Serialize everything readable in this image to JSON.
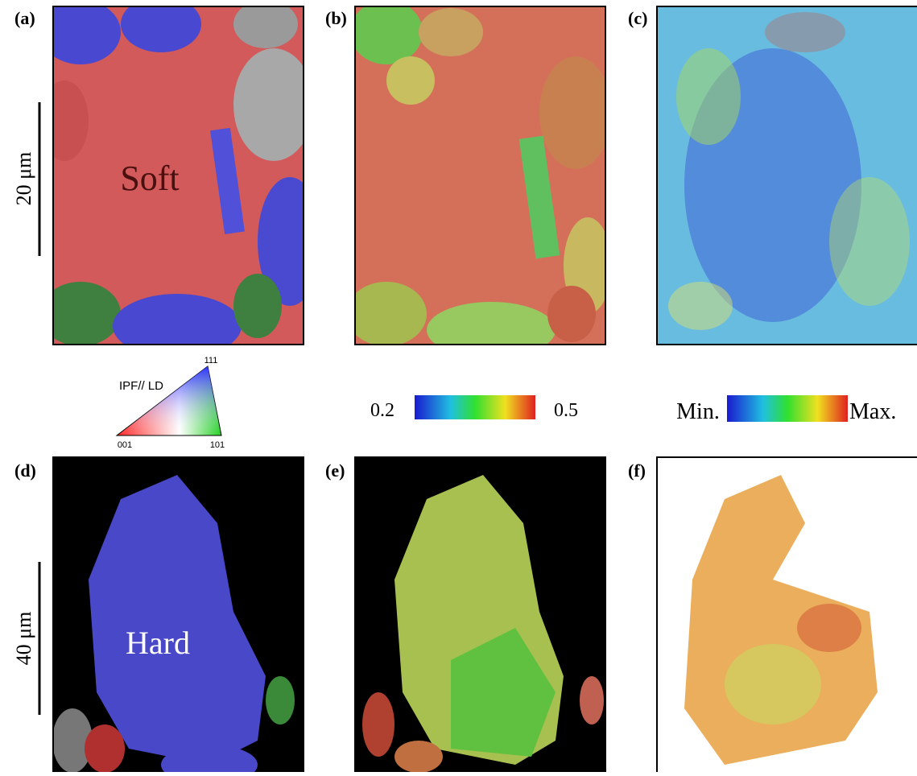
{
  "panels": [
    {
      "label": "(a)",
      "text": "Soft"
    },
    {
      "label": "(b)"
    },
    {
      "label": "(c)"
    },
    {
      "label": "(d)",
      "text": "Hard"
    },
    {
      "label": "(e)"
    },
    {
      "label": "(f)"
    }
  ],
  "scale_bars": [
    "20 μm",
    "40 μm"
  ],
  "ipf_key": {
    "title": "IPF// LD",
    "corners": [
      "111",
      "001",
      "101"
    ]
  },
  "colorbar_1": {
    "min": "0.2",
    "max": "0.5"
  },
  "colorbar_2": {
    "min": "Min.",
    "max": "Max."
  }
}
